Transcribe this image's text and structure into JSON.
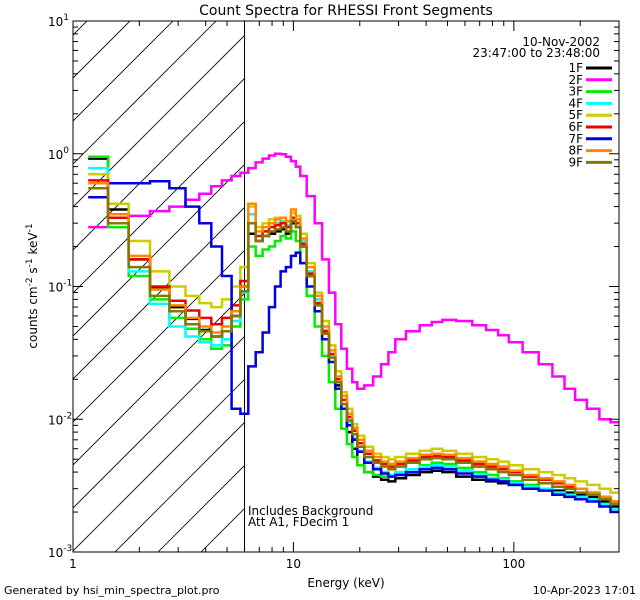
{
  "chart_data": {
    "type": "line",
    "title": "Count Spectra for RHESSI Front Segments",
    "xlabel": "Energy (keV)",
    "ylabel_parts": {
      "base": "counts cm",
      "exp1": "-2",
      "mid": " s",
      "exp2": "-1",
      "unit": " keV",
      "exp3": "-1"
    },
    "xscale": "log",
    "yscale": "log",
    "xlim": [
      1,
      300
    ],
    "ylim": [
      0.001,
      10
    ],
    "x_ticks": [
      {
        "value": 1,
        "label": "1"
      },
      {
        "value": 10,
        "label": "10"
      },
      {
        "value": 100,
        "label": "100"
      }
    ],
    "y_ticks": [
      {
        "value": 0.001,
        "base": "10",
        "exp": "-3"
      },
      {
        "value": 0.01,
        "base": "10",
        "exp": "-2"
      },
      {
        "value": 0.1,
        "base": "10",
        "exp": "-1"
      },
      {
        "value": 1,
        "base": "10",
        "exp": "0"
      },
      {
        "value": 10,
        "base": "10",
        "exp": "1"
      }
    ],
    "hatched_region_max_energy": 6,
    "date": "10-Nov-2002",
    "time_range": "23:47:00 to 23:48:00",
    "annotation_lines": [
      "Includes Background",
      "Att A1, FDecim 1"
    ],
    "energy_bins": [
      1.3,
      1.6,
      2.0,
      2.5,
      3.0,
      3.5,
      4.0,
      4.5,
      5.0,
      5.5,
      6.0,
      6.5,
      7.0,
      7.5,
      8.0,
      8.5,
      9.0,
      9.5,
      10.0,
      10.5,
      11,
      12,
      13,
      14,
      15,
      16,
      17,
      18,
      19,
      20,
      22,
      24,
      26,
      28,
      30,
      35,
      40,
      45,
      50,
      60,
      70,
      80,
      90,
      100,
      120,
      140,
      160,
      180,
      200,
      230,
      260,
      290
    ],
    "series": [
      {
        "name": "1F",
        "color": "#000000",
        "values": [
          0.92,
          0.38,
          0.16,
          0.098,
          0.07,
          0.057,
          0.047,
          0.042,
          0.046,
          0.06,
          0.1,
          0.25,
          0.22,
          0.24,
          0.25,
          0.26,
          0.27,
          0.25,
          0.3,
          0.28,
          0.2,
          0.12,
          0.075,
          0.045,
          0.03,
          0.018,
          0.012,
          0.008,
          0.006,
          0.0045,
          0.004,
          0.0037,
          0.0035,
          0.0034,
          0.0036,
          0.0038,
          0.004,
          0.0041,
          0.004,
          0.0037,
          0.0035,
          0.0034,
          0.0033,
          0.0032,
          0.0031,
          0.003,
          0.0029,
          0.0028,
          0.0027,
          0.0026,
          0.0024,
          0.0022
        ]
      },
      {
        "name": "2F",
        "color": "#ff00ff",
        "values": [
          0.28,
          0.3,
          0.34,
          0.37,
          0.4,
          0.45,
          0.5,
          0.57,
          0.63,
          0.68,
          0.72,
          0.78,
          0.86,
          0.92,
          0.97,
          1.0,
          0.99,
          0.95,
          0.88,
          0.8,
          0.68,
          0.48,
          0.3,
          0.16,
          0.09,
          0.052,
          0.034,
          0.024,
          0.019,
          0.017,
          0.018,
          0.021,
          0.026,
          0.032,
          0.04,
          0.046,
          0.051,
          0.054,
          0.056,
          0.055,
          0.051,
          0.047,
          0.043,
          0.038,
          0.032,
          0.026,
          0.021,
          0.017,
          0.014,
          0.012,
          0.01,
          0.0095
        ]
      },
      {
        "name": "3F",
        "color": "#00ee00",
        "values": [
          0.95,
          0.28,
          0.12,
          0.08,
          0.058,
          0.048,
          0.04,
          0.034,
          0.036,
          0.05,
          0.08,
          0.2,
          0.17,
          0.19,
          0.2,
          0.22,
          0.24,
          0.23,
          0.26,
          0.22,
          0.15,
          0.085,
          0.05,
          0.03,
          0.019,
          0.012,
          0.0085,
          0.0065,
          0.0052,
          0.0045,
          0.004,
          0.0038,
          0.0037,
          0.0037,
          0.0039,
          0.0042,
          0.0045,
          0.0047,
          0.0046,
          0.0043,
          0.004,
          0.0038,
          0.0036,
          0.0034,
          0.0032,
          0.003,
          0.0028,
          0.0027,
          0.0026,
          0.0025,
          0.0023,
          0.0021
        ]
      },
      {
        "name": "4F",
        "color": "#00ffff",
        "values": [
          0.78,
          0.3,
          0.13,
          0.074,
          0.05,
          0.042,
          0.038,
          0.036,
          0.04,
          0.055,
          0.09,
          0.35,
          0.24,
          0.26,
          0.28,
          0.3,
          0.31,
          0.29,
          0.32,
          0.3,
          0.22,
          0.13,
          0.08,
          0.047,
          0.03,
          0.019,
          0.013,
          0.0095,
          0.0072,
          0.0058,
          0.0048,
          0.0043,
          0.004,
          0.0038,
          0.004,
          0.0042,
          0.0044,
          0.0045,
          0.0044,
          0.0041,
          0.0038,
          0.0036,
          0.0035,
          0.0033,
          0.0031,
          0.003,
          0.0028,
          0.0027,
          0.0026,
          0.0025,
          0.0023,
          0.0021
        ]
      },
      {
        "name": "5F",
        "color": "#cccc00",
        "values": [
          0.7,
          0.42,
          0.22,
          0.13,
          0.1,
          0.085,
          0.075,
          0.07,
          0.08,
          0.1,
          0.14,
          0.4,
          0.28,
          0.3,
          0.32,
          0.33,
          0.33,
          0.31,
          0.36,
          0.34,
          0.25,
          0.15,
          0.09,
          0.055,
          0.036,
          0.023,
          0.016,
          0.012,
          0.0092,
          0.0075,
          0.0062,
          0.0055,
          0.0052,
          0.005,
          0.0052,
          0.0055,
          0.0058,
          0.006,
          0.0058,
          0.0055,
          0.0052,
          0.005,
          0.0048,
          0.0045,
          0.0042,
          0.004,
          0.0038,
          0.0036,
          0.0034,
          0.0032,
          0.003,
          0.0028
        ]
      },
      {
        "name": "6F",
        "color": "#ee0000",
        "values": [
          0.63,
          0.33,
          0.16,
          0.1,
          0.078,
          0.066,
          0.058,
          0.052,
          0.058,
          0.072,
          0.11,
          0.3,
          0.24,
          0.26,
          0.28,
          0.29,
          0.3,
          0.28,
          0.33,
          0.3,
          0.21,
          0.125,
          0.075,
          0.046,
          0.031,
          0.02,
          0.014,
          0.0104,
          0.0082,
          0.0066,
          0.0055,
          0.0049,
          0.0046,
          0.0044,
          0.0046,
          0.0049,
          0.0052,
          0.0053,
          0.0052,
          0.0049,
          0.0046,
          0.0044,
          0.0042,
          0.004,
          0.0037,
          0.0035,
          0.0033,
          0.0031,
          0.003,
          0.0028,
          0.0026,
          0.0024
        ]
      },
      {
        "name": "7F",
        "color": "#0000dd",
        "values": [
          0.47,
          0.6,
          0.6,
          0.62,
          0.55,
          0.4,
          0.3,
          0.2,
          0.12,
          0.012,
          0.011,
          0.025,
          0.032,
          0.045,
          0.07,
          0.1,
          0.13,
          0.14,
          0.17,
          0.18,
          0.15,
          0.1,
          0.065,
          0.04,
          0.027,
          0.017,
          0.012,
          0.009,
          0.007,
          0.0057,
          0.0047,
          0.0042,
          0.0039,
          0.0037,
          0.0038,
          0.004,
          0.0042,
          0.0043,
          0.0042,
          0.0039,
          0.0037,
          0.0035,
          0.0034,
          0.0032,
          0.003,
          0.0029,
          0.0027,
          0.0026,
          0.0025,
          0.0024,
          0.0022,
          0.002
        ]
      },
      {
        "name": "8F",
        "color": "#ff8800",
        "values": [
          0.6,
          0.35,
          0.17,
          0.095,
          0.072,
          0.058,
          0.05,
          0.045,
          0.05,
          0.065,
          0.1,
          0.42,
          0.26,
          0.28,
          0.3,
          0.32,
          0.33,
          0.31,
          0.38,
          0.32,
          0.23,
          0.14,
          0.085,
          0.05,
          0.033,
          0.021,
          0.015,
          0.011,
          0.0086,
          0.007,
          0.0058,
          0.0052,
          0.0048,
          0.0046,
          0.0048,
          0.0051,
          0.0054,
          0.0055,
          0.0054,
          0.0051,
          0.0048,
          0.0046,
          0.0044,
          0.0041,
          0.0038,
          0.0036,
          0.0034,
          0.0032,
          0.003,
          0.0028,
          0.0026,
          0.0024
        ]
      },
      {
        "name": "9F",
        "color": "#887700",
        "values": [
          0.55,
          0.3,
          0.14,
          0.085,
          0.065,
          0.052,
          0.046,
          0.042,
          0.046,
          0.06,
          0.092,
          0.3,
          0.22,
          0.24,
          0.26,
          0.27,
          0.28,
          0.26,
          0.31,
          0.28,
          0.2,
          0.12,
          0.072,
          0.044,
          0.029,
          0.019,
          0.013,
          0.0098,
          0.0077,
          0.0062,
          0.0052,
          0.0047,
          0.0044,
          0.0042,
          0.0044,
          0.0047,
          0.005,
          0.0051,
          0.005,
          0.0047,
          0.0044,
          0.0042,
          0.004,
          0.0038,
          0.0035,
          0.0033,
          0.0031,
          0.003,
          0.0028,
          0.0027,
          0.0025,
          0.0023
        ]
      }
    ]
  },
  "footer": {
    "generated_by": "Generated by hsi_min_spectra_plot.pro",
    "timestamp": "10-Apr-2023 17:01"
  }
}
